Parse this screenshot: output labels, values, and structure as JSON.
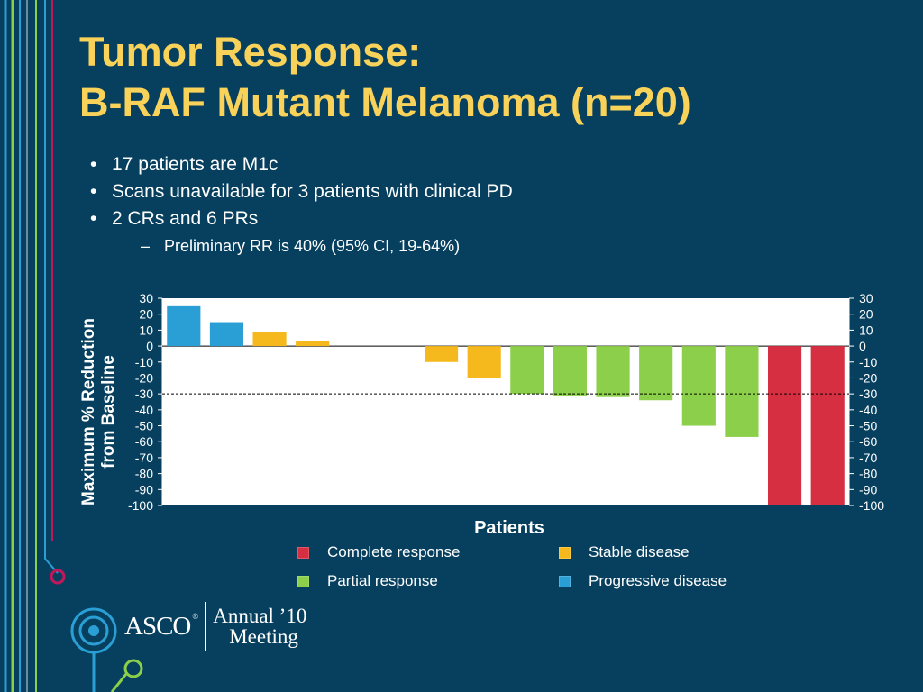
{
  "title": {
    "line1": "Tumor Response:",
    "line2": "B-RAF Mutant Melanoma (n=20)"
  },
  "bullets": [
    "17 patients are M1c",
    "Scans unavailable for 3 patients with clinical PD",
    "2 CRs and 6 PRs"
  ],
  "sub_bullet": "Preliminary RR is 40% (95% CI, 19-64%)",
  "legend": [
    {
      "label": "Complete response",
      "color": "#d62f42"
    },
    {
      "label": "Stable disease",
      "color": "#f5b91d"
    },
    {
      "label": "Partial response",
      "color": "#8ccf4a"
    },
    {
      "label": "Progressive disease",
      "color": "#2a9fd6"
    }
  ],
  "logo": {
    "brand": "ASCO",
    "reg": "®",
    "line1": "Annual ’10",
    "line2": "Meeting"
  },
  "chart_data": {
    "type": "bar",
    "xlabel": "Patients",
    "ylabel": [
      "Maximum % Reduction",
      "from Baseline"
    ],
    "ylim": [
      -100,
      30
    ],
    "yticks": [
      30,
      20,
      10,
      0,
      -10,
      -20,
      -30,
      -40,
      -50,
      -60,
      -70,
      -80,
      -90,
      -100
    ],
    "reference_line": -30,
    "values": [
      25,
      15,
      9,
      3,
      null,
      null,
      -10,
      -20,
      -30,
      -31,
      -32,
      -34,
      -50,
      -57,
      -100,
      -100
    ],
    "categories_by_bar": [
      "Progressive disease",
      "Progressive disease",
      "Stable disease",
      "Stable disease",
      "",
      "",
      "Stable disease",
      "Stable disease",
      "Partial response",
      "Partial response",
      "Partial response",
      "Partial response",
      "Partial response",
      "Partial response",
      "Complete response",
      "Complete response"
    ],
    "colors": {
      "Progressive disease": "#2a9fd6",
      "Stable disease": "#f5b91d",
      "Partial response": "#8ccf4a",
      "Complete response": "#d62f42"
    }
  }
}
